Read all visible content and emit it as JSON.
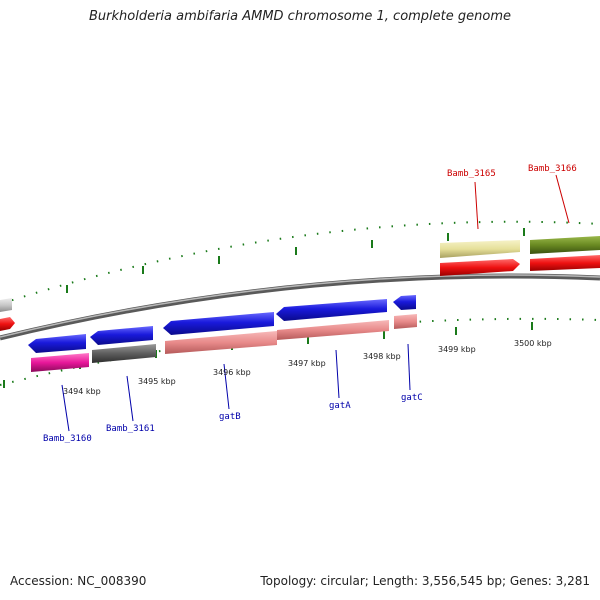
{
  "title": "Burkholderia ambifaria AMMD chromosome 1, complete genome",
  "footer": {
    "accession": "Accession: NC_008390",
    "summary": "Topology: circular; Length: 3,556,545 bp; Genes: 3,281"
  },
  "kbp_labels": [
    "3494 kbp",
    "3495 kbp",
    "3496 kbp",
    "3497 kbp",
    "3498 kbp",
    "3499 kbp",
    "3500 kbp"
  ],
  "gene_labels_top": [
    {
      "name": "Bamb_3165",
      "color": "#cc0000"
    },
    {
      "name": "Bamb_3166",
      "color": "#cc0000"
    }
  ],
  "gene_labels_bottom": [
    {
      "name": "Bamb_3160",
      "color": "#0000aa"
    },
    {
      "name": "Bamb_3161",
      "color": "#0000aa"
    },
    {
      "name": "gatB",
      "color": "#0000aa"
    },
    {
      "name": "gatA",
      "color": "#0000aa"
    },
    {
      "name": "gatC",
      "color": "#0000aa"
    }
  ],
  "colors": {
    "forward_blue": "#1a1adc",
    "salmon": "#e88a8a",
    "red": "#ee1111",
    "magenta": "#e8179a",
    "dark_gray": "#5e5e5e",
    "khaki": "#e6e09a",
    "olive": "#6a8a22",
    "light_gray": "#c8c8c8",
    "tick_green": "#1a7a1a",
    "backbone": "#8c8c8c"
  }
}
